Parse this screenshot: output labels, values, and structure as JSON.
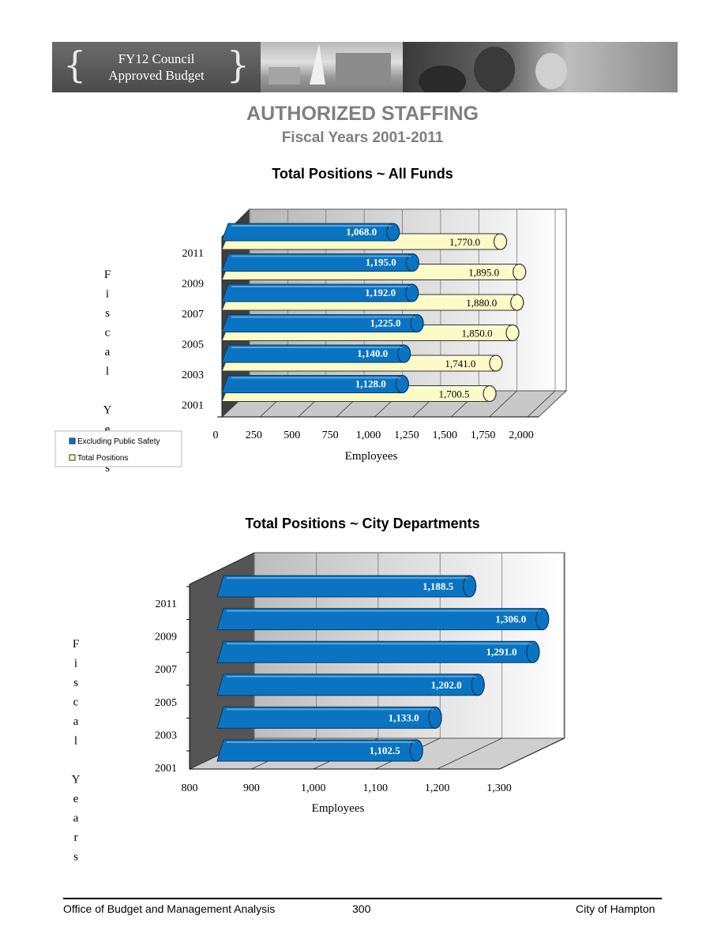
{
  "header": {
    "banner_line1": "FY12 Council",
    "banner_line2": "Approved Budget",
    "title": "AUTHORIZED STAFFING",
    "subtitle": "Fiscal Years 2001-2011"
  },
  "footer": {
    "left": "Office of Budget and Management Analysis",
    "center": "300",
    "right": "City of Hampton"
  },
  "colors": {
    "blue": "#0a74c2",
    "cream": "#fbfbc8",
    "wall": "#d8d8d8"
  },
  "chart_data": [
    {
      "type": "bar",
      "orientation": "horizontal",
      "title": "Total Positions ~ All Funds",
      "xlabel": "Employees",
      "ylabel": "Fiscal Years",
      "categories": [
        "2011",
        "2009",
        "2007",
        "2005",
        "2003",
        "2001"
      ],
      "series": [
        {
          "name": "Excluding Public Safety",
          "color": "#0a74c2",
          "values": [
            1068.0,
            1195.0,
            1192.0,
            1225.0,
            1140.0,
            1128.0
          ]
        },
        {
          "name": "Total Positions",
          "color": "#fbfbc8",
          "values": [
            1770.0,
            1895.0,
            1880.0,
            1850.0,
            1741.0,
            1700.5
          ]
        }
      ],
      "xlim": [
        0,
        2000
      ],
      "xticks": [
        "0",
        "250",
        "500",
        "750",
        "1,000",
        "1,250",
        "1,500",
        "1,750",
        "2,000"
      ],
      "value_labels_1": [
        "1,068.0",
        "1,195.0",
        "1,192.0",
        "1,225.0",
        "1,140.0",
        "1,128.0"
      ],
      "value_labels_2": [
        "1,770.0",
        "1,895.0",
        "1,880.0",
        "1,850.0",
        "1,741.0",
        "1,700.5"
      ],
      "grid": true,
      "legend": "bottom-left"
    },
    {
      "type": "bar",
      "orientation": "horizontal",
      "title": "Total Positions ~ City Departments",
      "xlabel": "Employees",
      "ylabel": "Fiscal Years",
      "categories": [
        "2011",
        "2009",
        "2007",
        "2005",
        "2003",
        "2001"
      ],
      "values": [
        1188.5,
        1306.0,
        1291.0,
        1202.0,
        1133.0,
        1102.5
      ],
      "value_labels": [
        "1,188.5",
        "1,306.0",
        "1,291.0",
        "1,202.0",
        "1,133.0",
        "1,102.5"
      ],
      "xlim": [
        800,
        1300
      ],
      "xticks": [
        "800",
        "900",
        "1,000",
        "1,100",
        "1,200",
        "1,300"
      ],
      "grid": true
    }
  ]
}
